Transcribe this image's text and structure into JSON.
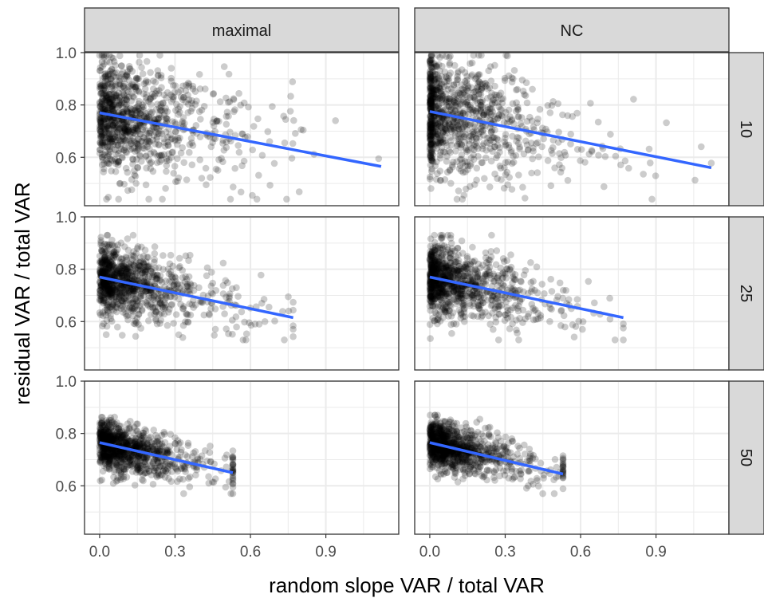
{
  "chart_data": {
    "type": "scatter",
    "title": "",
    "xlabel": "random slope VAR / total VAR",
    "ylabel": "residual VAR / total VAR",
    "xlim": [
      -0.06,
      1.19
    ],
    "ylim": [
      0.415,
      1.0
    ],
    "xticks": [
      0.0,
      0.3,
      0.6,
      0.9
    ],
    "xtick_labels": [
      "0.0",
      "0.3",
      "0.6",
      "0.9"
    ],
    "yticks": [
      0.6,
      0.8,
      1.0
    ],
    "ytick_labels": [
      "0.6",
      "0.8",
      "1.0"
    ],
    "grid": true,
    "facet_cols": [
      "maximal",
      "NC"
    ],
    "facet_rows": [
      "10",
      "25",
      "50"
    ],
    "colors": {
      "points": "#000000",
      "fit_line": "#3366FF",
      "strip_fill": "#D9D9D9",
      "grid": "#EBEBEB",
      "panel_border": "#333333"
    },
    "panels": [
      {
        "col": "maximal",
        "row": "10",
        "fit": {
          "x": [
            0.0,
            1.12
          ],
          "y": [
            0.77,
            0.565
          ]
        },
        "cloud": {
          "n": 1000,
          "x_scale": 0.18,
          "x_max": 1.12,
          "y_center": 0.77,
          "slope": -0.18,
          "y_sd": 0.11,
          "y_min": 0.44,
          "y_max": 0.99,
          "zero_mass": 0.0
        }
      },
      {
        "col": "NC",
        "row": "10",
        "fit": {
          "x": [
            0.0,
            1.12
          ],
          "y": [
            0.775,
            0.56
          ]
        },
        "cloud": {
          "n": 1000,
          "x_scale": 0.18,
          "x_max": 1.12,
          "y_center": 0.775,
          "slope": -0.19,
          "y_sd": 0.11,
          "y_min": 0.44,
          "y_max": 0.99,
          "zero_mass": 0.18
        }
      },
      {
        "col": "maximal",
        "row": "25",
        "fit": {
          "x": [
            0.0,
            0.77
          ],
          "y": [
            0.77,
            0.615
          ]
        },
        "cloud": {
          "n": 1000,
          "x_scale": 0.15,
          "x_max": 0.77,
          "y_center": 0.77,
          "slope": -0.2,
          "y_sd": 0.065,
          "y_min": 0.53,
          "y_max": 0.93,
          "zero_mass": 0.0
        }
      },
      {
        "col": "NC",
        "row": "25",
        "fit": {
          "x": [
            0.0,
            0.77
          ],
          "y": [
            0.77,
            0.615
          ]
        },
        "cloud": {
          "n": 1000,
          "x_scale": 0.15,
          "x_max": 0.77,
          "y_center": 0.77,
          "slope": -0.2,
          "y_sd": 0.065,
          "y_min": 0.53,
          "y_max": 0.93,
          "zero_mass": 0.06
        }
      },
      {
        "col": "maximal",
        "row": "50",
        "fit": {
          "x": [
            0.0,
            0.53
          ],
          "y": [
            0.765,
            0.65
          ]
        },
        "cloud": {
          "n": 1000,
          "x_scale": 0.13,
          "x_max": 0.53,
          "y_center": 0.765,
          "slope": -0.22,
          "y_sd": 0.045,
          "y_min": 0.57,
          "y_max": 0.87,
          "zero_mass": 0.0
        }
      },
      {
        "col": "NC",
        "row": "50",
        "fit": {
          "x": [
            0.0,
            0.53
          ],
          "y": [
            0.765,
            0.645
          ]
        },
        "cloud": {
          "n": 1000,
          "x_scale": 0.13,
          "x_max": 0.53,
          "y_center": 0.765,
          "slope": -0.22,
          "y_sd": 0.045,
          "y_min": 0.57,
          "y_max": 0.87,
          "zero_mass": 0.0
        }
      }
    ]
  }
}
